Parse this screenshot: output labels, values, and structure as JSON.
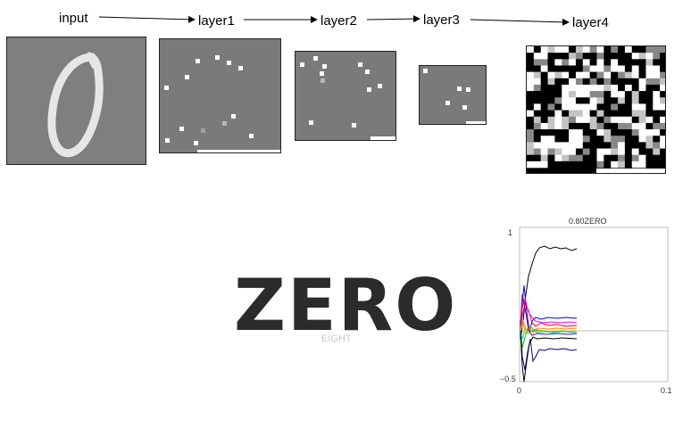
{
  "pipeline": {
    "stages": [
      "input",
      "layer1",
      "layer2",
      "layer3",
      "layer4"
    ]
  },
  "prediction": {
    "word": "ZERO",
    "secondary_word": "EIGHT"
  },
  "plot": {
    "title": "0.80ZERO",
    "y_top_tick": "1",
    "y_bottom_tick": "−0.5",
    "x_left_tick": "0",
    "x_right_tick": "0.1"
  },
  "colors": {
    "layer_bg": "#7a7a7a",
    "activation": "#ffffff",
    "word": "#2b2b2b",
    "secondary_word": "#c8c8c8"
  }
}
